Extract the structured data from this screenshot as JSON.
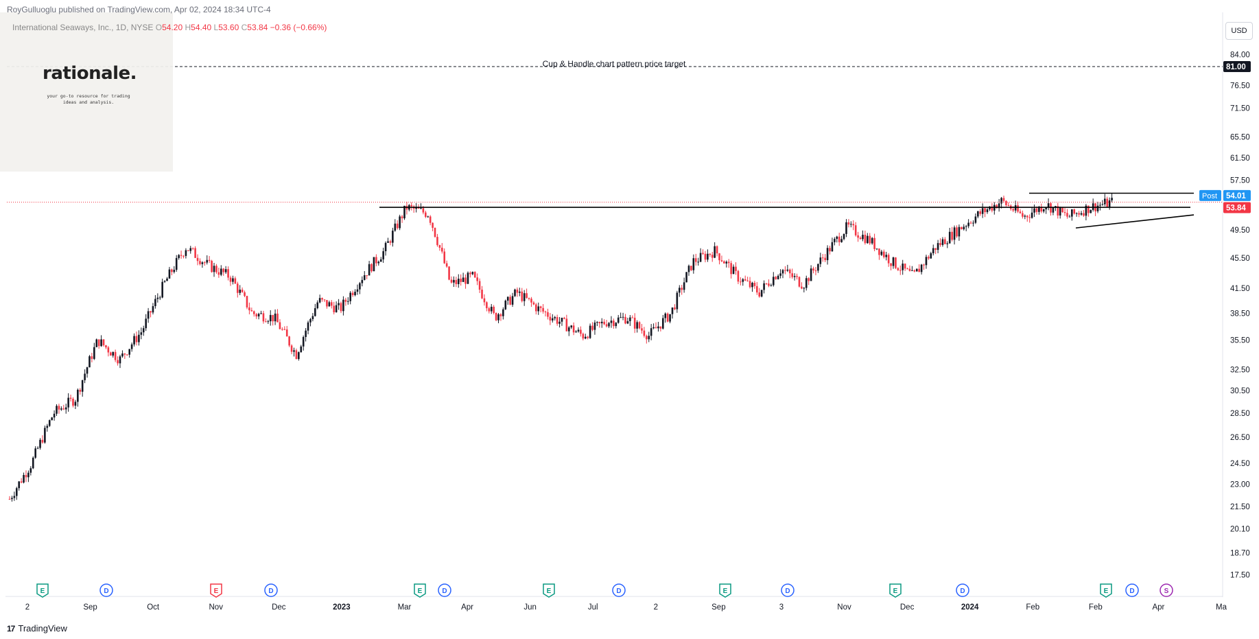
{
  "header": {
    "published": "RoyGulluoglu published on TradingView.com, Apr 02, 2024 18:34 UTC-4",
    "symbol": "International Seaways, Inc., 1D, NYSE",
    "o_label": "O",
    "o": "54.20",
    "h_label": "H",
    "h": "54.40",
    "l_label": "L",
    "l": "53.60",
    "c_label": "C",
    "c": "53.84",
    "change": "−0.36 (−0.66%)"
  },
  "logo": {
    "title": "rationale.",
    "tagline": "your go-to resource for trading ideas and analysis."
  },
  "currency_button": "USD",
  "footer": {
    "brand": "TradingView",
    "mark": "17"
  },
  "colors": {
    "up": "#131722",
    "down": "#f23645",
    "post": "#2196f3",
    "target": "#131722"
  },
  "chart_data": {
    "type": "candlestick",
    "ylim": [
      16.5,
      95
    ],
    "log_scale": true,
    "y_ticks": [
      "84.00",
      "76.50",
      "71.50",
      "65.50",
      "61.50",
      "57.50",
      "49.50",
      "45.50",
      "41.50",
      "38.50",
      "35.50",
      "32.50",
      "30.50",
      "28.50",
      "26.50",
      "24.50",
      "23.00",
      "21.50",
      "20.10",
      "18.70",
      "17.50"
    ],
    "x_labels": [
      "2",
      "Sep",
      "Oct",
      "Nov",
      "Dec",
      "2023",
      "Mar",
      "Apr",
      "Jun",
      "Jul",
      "2",
      "Sep",
      "3",
      "Nov",
      "Dec",
      "2024",
      "Feb",
      "Feb",
      "Apr",
      "Ma"
    ],
    "price_labels": [
      {
        "text": "81.00",
        "value": 81.0,
        "kind": "target"
      },
      {
        "text": "54.01",
        "value": 54.01,
        "kind": "post",
        "tag": "Post"
      },
      {
        "text": "53.84",
        "value": 53.84,
        "kind": "last"
      }
    ],
    "annotation": "Cup & Handle chart pattern price target",
    "price_path": [
      [
        "2",
        22.0
      ],
      [
        "2",
        24.5
      ],
      [
        "Sep",
        28.5
      ],
      [
        "Sep",
        29.8
      ],
      [
        "Oct",
        35.5
      ],
      [
        "Oct",
        33.5
      ],
      [
        "Oct",
        36.5
      ],
      [
        "Nov",
        42.0
      ],
      [
        "Nov",
        47.0
      ],
      [
        "Nov",
        44.5
      ],
      [
        "Dec",
        43.0
      ],
      [
        "Dec",
        38.5
      ],
      [
        "Dec",
        38.0
      ],
      [
        "Dec",
        34.0
      ],
      [
        "2023",
        40.0
      ],
      [
        "2023",
        39.0
      ],
      [
        "2023",
        43.0
      ],
      [
        "2023",
        46.5
      ],
      [
        "Mar",
        53.0
      ],
      [
        "Mar",
        52.0
      ],
      [
        "Mar",
        42.0
      ],
      [
        "Apr",
        43.0
      ],
      [
        "Apr",
        38.0
      ],
      [
        "Apr",
        41.0
      ],
      [
        "Apr",
        39.0
      ],
      [
        "Jun",
        37.5
      ],
      [
        "Jun",
        36.0
      ],
      [
        "Jun",
        37.5
      ],
      [
        "Jul",
        38.0
      ],
      [
        "Jul",
        36.0
      ],
      [
        "Jul",
        38.5
      ],
      [
        "2",
        45.0
      ],
      [
        "2",
        46.5
      ],
      [
        "Sep",
        43.0
      ],
      [
        "Sep",
        41.0
      ],
      [
        "Sep",
        44.0
      ],
      [
        "3",
        42.0
      ],
      [
        "3",
        46.0
      ],
      [
        "Nov",
        50.0
      ],
      [
        "Nov",
        48.0
      ],
      [
        "Nov",
        45.0
      ],
      [
        "Dec",
        43.0
      ],
      [
        "Dec",
        47.0
      ],
      [
        "Dec",
        49.5
      ],
      [
        "2024",
        52.0
      ],
      [
        "2024",
        54.0
      ],
      [
        "Feb",
        51.5
      ],
      [
        "Feb",
        53.5
      ],
      [
        "Feb",
        51.5
      ],
      [
        "Feb",
        53.0
      ],
      [
        "Apr",
        53.84
      ]
    ],
    "levels": [
      {
        "name": "target",
        "value": 81.0,
        "style": "dashed"
      },
      {
        "name": "cup-rim-resistance",
        "value": 53.0
      },
      {
        "name": "handle-resistance",
        "value": 55.3
      },
      {
        "name": "handle-support",
        "from": 49.8,
        "to": 51.8
      }
    ],
    "events": [
      {
        "type": "E",
        "color": "#089981"
      },
      {
        "type": "D",
        "color": "#2962ff"
      },
      {
        "type": "E",
        "color": "#f23645"
      },
      {
        "type": "D",
        "color": "#2962ff"
      },
      {
        "type": "E",
        "color": "#089981"
      },
      {
        "type": "D",
        "color": "#2962ff"
      },
      {
        "type": "E",
        "color": "#089981"
      },
      {
        "type": "D",
        "color": "#2962ff"
      },
      {
        "type": "E",
        "color": "#089981"
      },
      {
        "type": "D",
        "color": "#2962ff"
      },
      {
        "type": "E",
        "color": "#089981"
      },
      {
        "type": "D",
        "color": "#2962ff"
      },
      {
        "type": "E",
        "color": "#089981"
      },
      {
        "type": "D",
        "color": "#2962ff"
      },
      {
        "type": "S",
        "color": "#9c27b0"
      }
    ],
    "grid": false
  }
}
